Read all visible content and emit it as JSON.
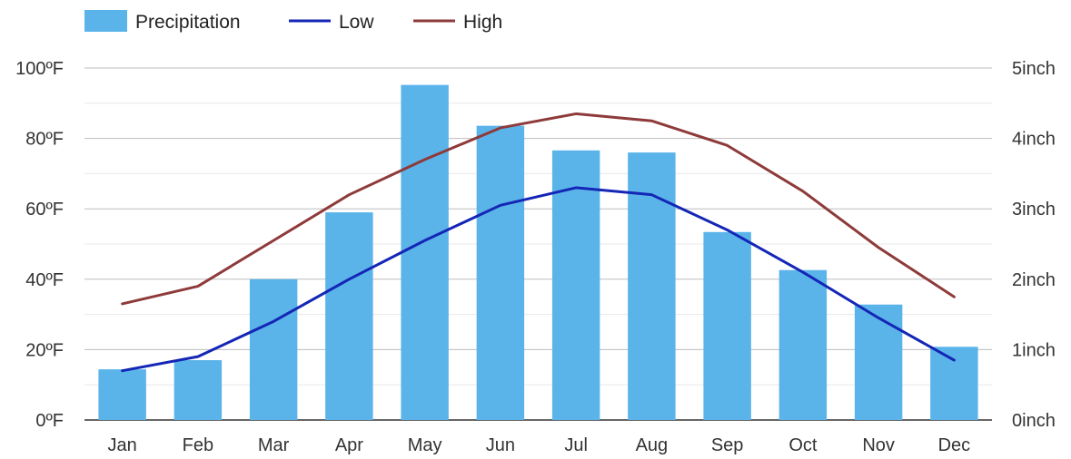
{
  "chart_data": {
    "type": "bar",
    "categories": [
      "Jan",
      "Feb",
      "Mar",
      "Apr",
      "May",
      "Jun",
      "Jul",
      "Aug",
      "Sep",
      "Oct",
      "Nov",
      "Dec"
    ],
    "series": [
      {
        "name": "Precipitation",
        "type": "bar",
        "axis": "right",
        "color": "#5ab4ea",
        "values": [
          0.72,
          0.85,
          2.0,
          2.95,
          4.76,
          4.18,
          3.83,
          3.8,
          2.67,
          2.13,
          1.64,
          1.04
        ]
      },
      {
        "name": "Low",
        "type": "line",
        "axis": "left",
        "color": "#1426b5",
        "values": [
          14,
          18,
          28,
          40,
          51,
          61,
          66,
          64,
          54,
          42,
          29,
          17
        ]
      },
      {
        "name": "High",
        "type": "line",
        "axis": "left",
        "color": "#8e3a3a",
        "values": [
          33,
          38,
          51,
          64,
          74,
          83,
          87,
          85,
          78,
          65,
          49,
          35
        ]
      }
    ],
    "y_left": {
      "ylim": [
        0,
        100
      ],
      "ticks": [
        "0ºF",
        "20ºF",
        "40ºF",
        "60ºF",
        "80ºF",
        "100ºF"
      ]
    },
    "y_right": {
      "ylim": [
        0,
        5
      ],
      "ticks": [
        "0inch",
        "1inch",
        "2inch",
        "3inch",
        "4inch",
        "5inch"
      ]
    },
    "title": "",
    "xlabel": "",
    "ylabel": "",
    "grid": true,
    "legend_position": "top-left"
  }
}
